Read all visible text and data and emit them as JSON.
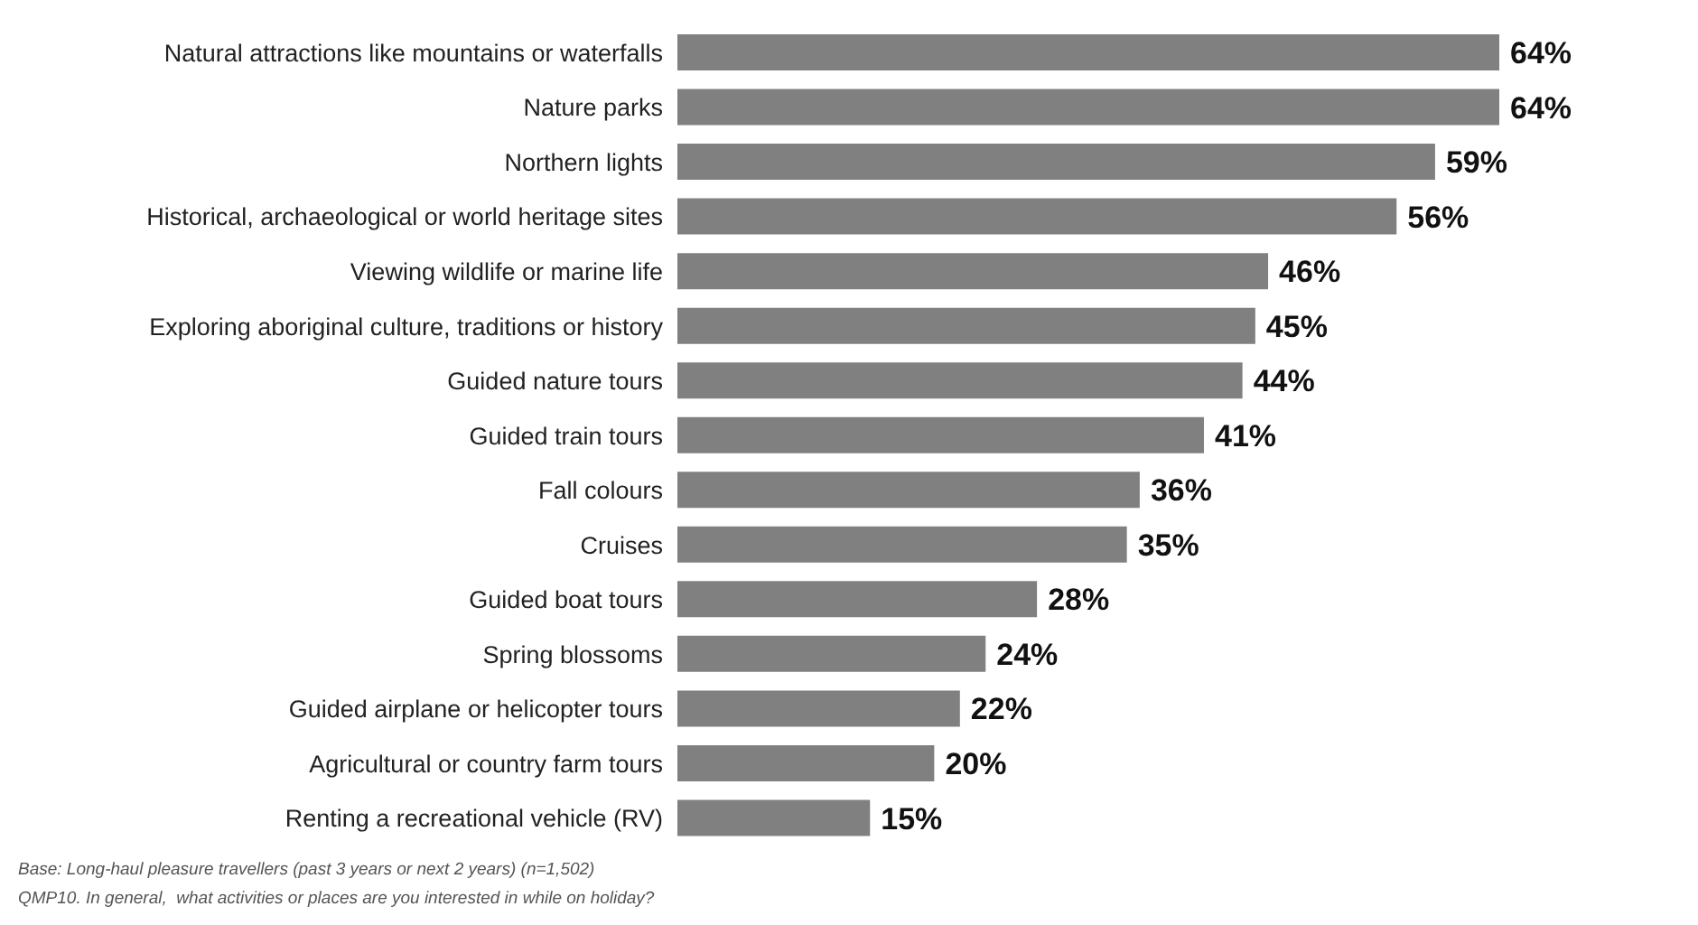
{
  "chart_data": {
    "type": "bar",
    "orientation": "horizontal",
    "categories": [
      "Natural attractions like mountains or waterfalls",
      "Nature parks",
      "Northern lights",
      "Historical, archaeological or world heritage sites",
      "Viewing wildlife or marine life",
      "Exploring aboriginal culture, traditions or history",
      "Guided nature tours",
      "Guided train tours",
      "Fall colours",
      "Cruises",
      "Guided boat tours",
      "Spring blossoms",
      "Guided airplane or helicopter tours",
      "Agricultural or country farm tours",
      "Renting a recreational vehicle (RV)"
    ],
    "values": [
      64,
      64,
      59,
      56,
      46,
      45,
      44,
      41,
      36,
      35,
      28,
      24,
      22,
      20,
      15
    ],
    "value_labels": [
      "64%",
      "64%",
      "59%",
      "56%",
      "46%",
      "45%",
      "44%",
      "41%",
      "36%",
      "35%",
      "28%",
      "24%",
      "22%",
      "20%",
      "15%"
    ],
    "color": "#808080",
    "annotations": [
      "Base: Long-haul pleasure travellers (past 3 years or next 2 years) (n=1,502)",
      "QMP10. In general,  what activities or places are you interested in while on holiday?"
    ]
  }
}
